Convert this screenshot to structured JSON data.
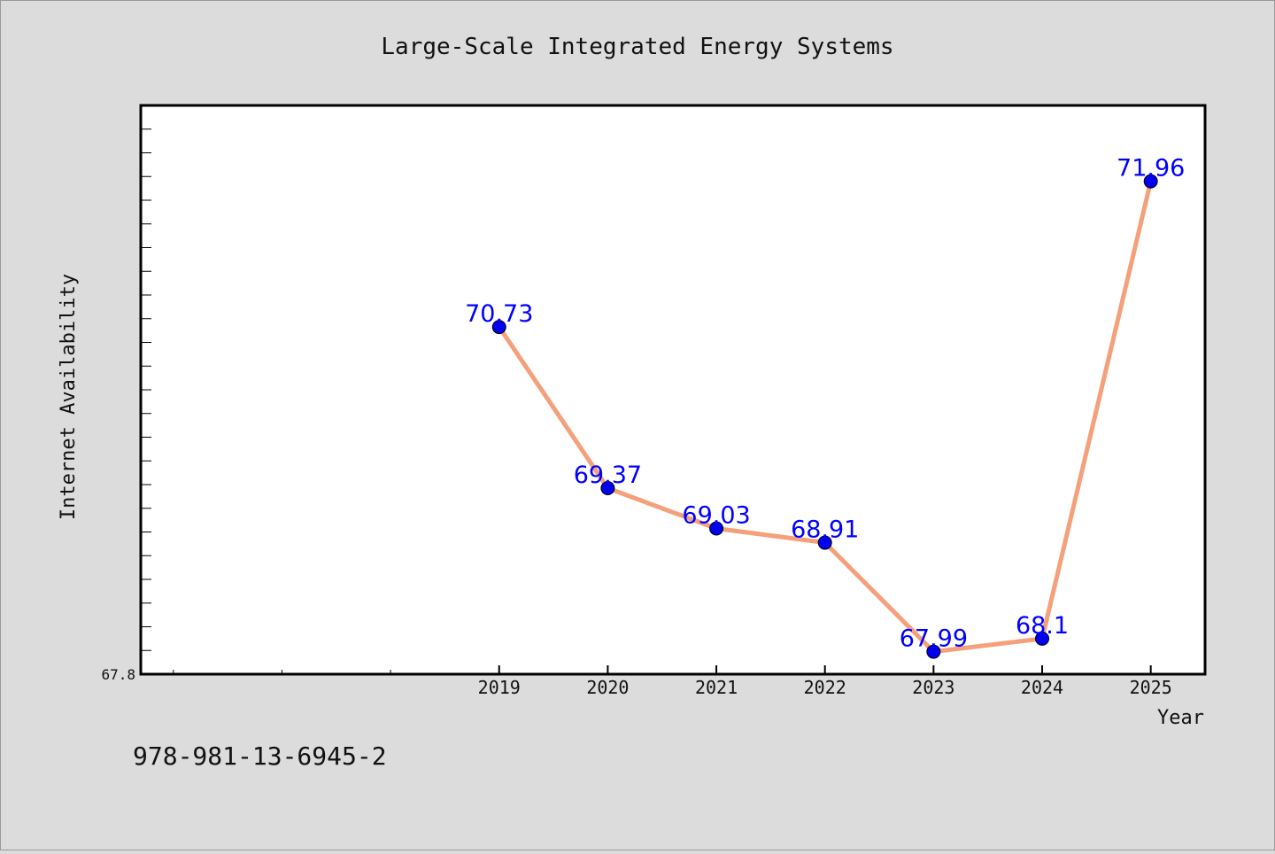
{
  "chart_data": {
    "type": "line",
    "title": "Large-Scale Integrated Energy Systems",
    "xlabel": "Year",
    "ylabel": "Internet Availability",
    "x": [
      "2019",
      "2020",
      "2021",
      "2022",
      "2023",
      "2024",
      "2025"
    ],
    "values": [
      70.73,
      69.37,
      69.03,
      68.91,
      67.99,
      68.1,
      71.96
    ],
    "data_labels": [
      "70.73",
      "69.37",
      "69.03",
      "68.91",
      "67.99",
      "68.1",
      "71.96"
    ],
    "y_tick_labels": [
      "67.8"
    ],
    "ylim": [
      67.8,
      72.6
    ],
    "xlim": [
      2015.7,
      2025.5
    ],
    "grid": false,
    "line_color": "#f4a07a",
    "marker_color": "#0000ee"
  },
  "footer": {
    "isbn": "978-981-13-6945-2"
  }
}
